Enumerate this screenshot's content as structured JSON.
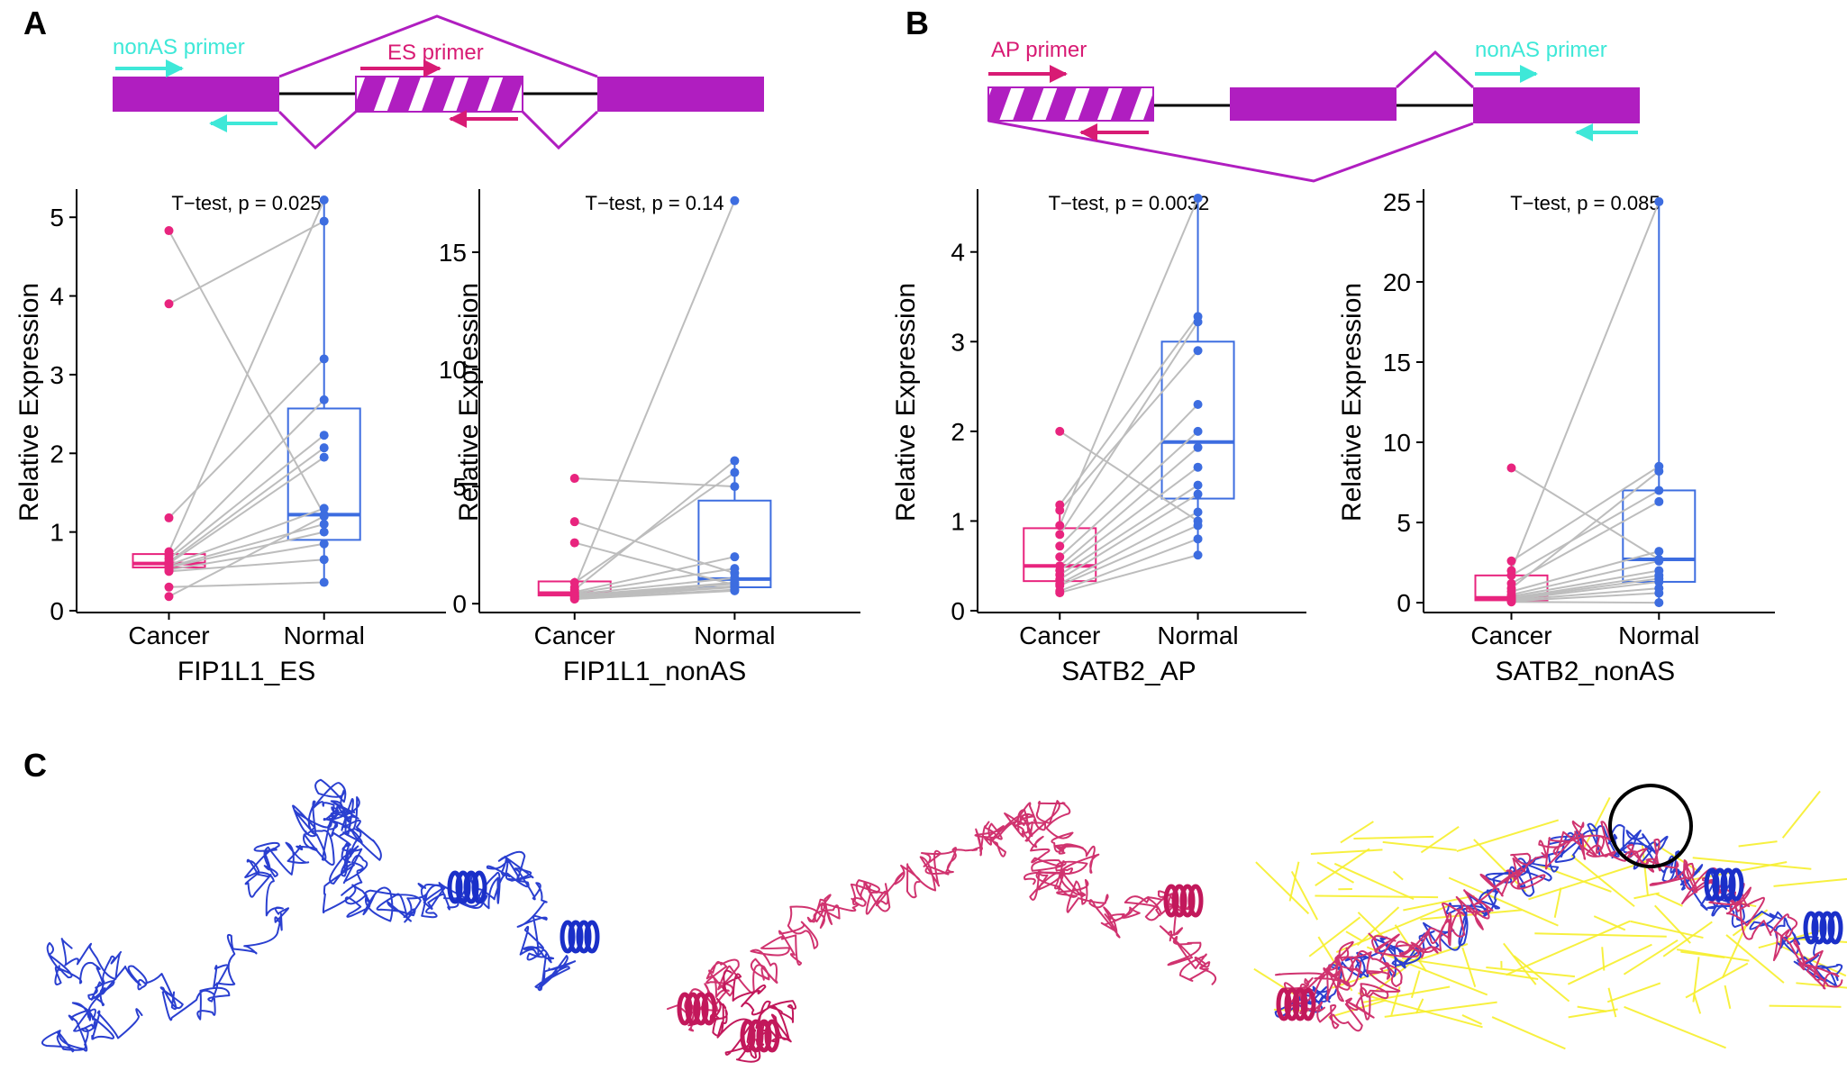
{
  "panel_labels": {
    "a": "A",
    "b": "B",
    "c": "C"
  },
  "colors": {
    "exon": "#b01ec0",
    "cancer": "#e8247e",
    "normal": "#3d6de0",
    "primer_nonas": "#3ee8d8",
    "primer_case": "#d81b74",
    "line": "#bdbdbd",
    "structure_blue": "#2a3fd0",
    "structure_pink": "#d0336f",
    "structure_yellow": "#f7ef2c"
  },
  "diagram_a": {
    "nonas_primer": "nonAS primer",
    "es_primer": "ES primer"
  },
  "diagram_b": {
    "ap_primer": "AP primer",
    "nonas_primer": "nonAS primer"
  },
  "chart_data": [
    {
      "type": "boxplot",
      "id": "fip1l1_es",
      "xlabel": "FIP1L1_ES",
      "ylabel": "Relative Expression",
      "test_label": "T−test, p = 0.025",
      "categories": [
        "Cancer",
        "Normal"
      ],
      "ylim": [
        0,
        5.3
      ],
      "yticks": [
        0,
        1,
        2,
        3,
        4,
        5
      ],
      "boxes": [
        {
          "name": "Cancer",
          "q1": 0.55,
          "median": 0.6,
          "q3": 0.72,
          "whisker_low": 0.45,
          "whisker_high": 0.75
        },
        {
          "name": "Normal",
          "q1": 0.9,
          "median": 1.22,
          "q3": 2.57,
          "whisker_low": 0.36,
          "whisker_high": 5.22
        }
      ],
      "pairs": [
        [
          4.83,
          1.22
        ],
        [
          3.9,
          4.95
        ],
        [
          1.18,
          3.2
        ],
        [
          0.75,
          5.22
        ],
        [
          0.7,
          2.68
        ],
        [
          0.66,
          2.23
        ],
        [
          0.62,
          2.07
        ],
        [
          0.6,
          1.95
        ],
        [
          0.58,
          1.3
        ],
        [
          0.56,
          1.1
        ],
        [
          0.55,
          1.0
        ],
        [
          0.52,
          0.85
        ],
        [
          0.5,
          0.65
        ],
        [
          0.3,
          0.36
        ],
        [
          0.18,
          1.2
        ]
      ]
    },
    {
      "type": "boxplot",
      "id": "fip1l1_nonas",
      "xlabel": "FIP1L1_nonAS",
      "ylabel": "Relative Expression",
      "test_label": "T−test, p = 0.14",
      "categories": [
        "Cancer",
        "Normal"
      ],
      "ylim": [
        -0.3,
        17.5
      ],
      "yticks": [
        0,
        5,
        10,
        15
      ],
      "boxes": [
        {
          "name": "Cancer",
          "q1": 0.35,
          "median": 0.45,
          "q3": 0.95,
          "whisker_low": 0.2,
          "whisker_high": 1.1
        },
        {
          "name": "Normal",
          "q1": 0.7,
          "median": 1.05,
          "q3": 4.4,
          "whisker_low": 0.5,
          "whisker_high": 6.1
        }
      ],
      "pairs": [
        [
          5.35,
          5.0
        ],
        [
          3.5,
          1.3
        ],
        [
          2.6,
          0.8
        ],
        [
          0.9,
          5.6
        ],
        [
          0.7,
          17.2
        ],
        [
          0.6,
          6.1
        ],
        [
          0.5,
          2.0
        ],
        [
          0.45,
          1.5
        ],
        [
          0.4,
          1.1
        ],
        [
          0.35,
          0.9
        ],
        [
          0.3,
          0.85
        ],
        [
          0.3,
          0.75
        ],
        [
          0.25,
          0.7
        ],
        [
          0.2,
          0.6
        ],
        [
          0.2,
          0.55
        ]
      ]
    },
    {
      "type": "boxplot",
      "id": "satb2_ap",
      "xlabel": "SATB2_AP",
      "ylabel": "Relative Expression",
      "test_label": "T−test, p = 0.0032",
      "categories": [
        "Cancer",
        "Normal"
      ],
      "ylim": [
        0,
        4.65
      ],
      "yticks": [
        0,
        1,
        2,
        3,
        4
      ],
      "boxes": [
        {
          "name": "Cancer",
          "q1": 0.33,
          "median": 0.5,
          "q3": 0.92,
          "whisker_low": 0.2,
          "whisker_high": 1.18
        },
        {
          "name": "Normal",
          "q1": 1.25,
          "median": 1.88,
          "q3": 3.0,
          "whisker_low": 0.6,
          "whisker_high": 4.6
        }
      ],
      "pairs": [
        [
          2.0,
          1.0
        ],
        [
          1.18,
          3.28
        ],
        [
          1.12,
          2.9
        ],
        [
          0.95,
          4.6
        ],
        [
          0.85,
          3.22
        ],
        [
          0.72,
          2.3
        ],
        [
          0.6,
          2.0
        ],
        [
          0.5,
          1.82
        ],
        [
          0.45,
          1.6
        ],
        [
          0.4,
          1.4
        ],
        [
          0.35,
          1.3
        ],
        [
          0.3,
          1.1
        ],
        [
          0.28,
          0.95
        ],
        [
          0.22,
          0.8
        ],
        [
          0.2,
          0.62
        ]
      ]
    },
    {
      "type": "boxplot",
      "id": "satb2_nonas",
      "xlabel": "SATB2_nonAS",
      "ylabel": "Relative Expression",
      "test_label": "T−test, p = 0.085",
      "categories": [
        "Cancer",
        "Normal"
      ],
      "ylim": [
        -0.5,
        25.5
      ],
      "yticks": [
        0,
        5,
        10,
        15,
        20,
        25
      ],
      "boxes": [
        {
          "name": "Cancer",
          "q1": 0.15,
          "median": 0.3,
          "q3": 1.7,
          "whisker_low": 0.05,
          "whisker_high": 2.6
        },
        {
          "name": "Normal",
          "q1": 1.3,
          "median": 2.7,
          "q3": 7.0,
          "whisker_low": 0.0,
          "whisker_high": 25.0
        }
      ],
      "pairs": [
        [
          8.4,
          2.7
        ],
        [
          2.6,
          8.5
        ],
        [
          2.0,
          25.0
        ],
        [
          1.7,
          7.0
        ],
        [
          1.2,
          6.3
        ],
        [
          0.9,
          8.2
        ],
        [
          0.7,
          3.2
        ],
        [
          0.5,
          2.6
        ],
        [
          0.4,
          2.0
        ],
        [
          0.3,
          1.7
        ],
        [
          0.25,
          1.5
        ],
        [
          0.2,
          1.3
        ],
        [
          0.15,
          0.9
        ],
        [
          0.1,
          0.6
        ],
        [
          0.05,
          0.0
        ]
      ]
    }
  ]
}
